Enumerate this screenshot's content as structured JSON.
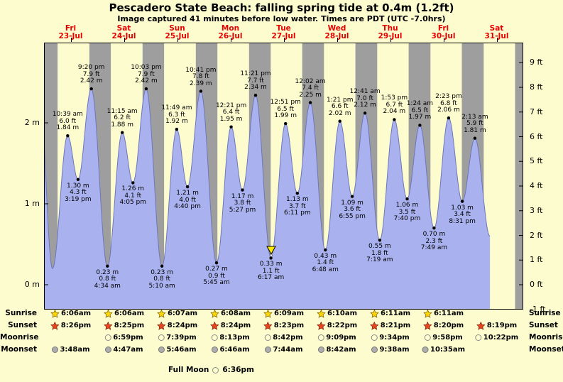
{
  "title": "Pescadero State Beach: falling  spring tide at 0.4m (1.2ft)",
  "subtitle": "Image captured 41 minutes before low water. Times are PDT (UTC -7.0hrs)",
  "chart_data": {
    "type": "area",
    "title": "Pescadero State Beach tide curve",
    "days": [
      {
        "name": "Fri",
        "date": "23-Jul"
      },
      {
        "name": "Sat",
        "date": "24-Jul"
      },
      {
        "name": "Sun",
        "date": "25-Jul"
      },
      {
        "name": "Mon",
        "date": "26-Jul"
      },
      {
        "name": "Tue",
        "date": "27-Jul"
      },
      {
        "name": "Wed",
        "date": "28-Jul"
      },
      {
        "name": "Thu",
        "date": "29-Jul"
      },
      {
        "name": "Fri",
        "date": "30-Jul"
      },
      {
        "name": "Sat",
        "date": "31-Jul"
      }
    ],
    "y_left": {
      "unit": "m",
      "ticks": [
        2,
        1,
        0
      ]
    },
    "y_right": {
      "unit": "ft",
      "ticks": [
        9,
        8,
        7,
        6,
        5,
        4,
        3,
        2,
        1,
        0,
        -1
      ]
    },
    "ylim_m": [
      -0.3,
      3.0
    ],
    "tides": [
      {
        "day": 0,
        "type": "high",
        "time": "10:39 am",
        "ft": 6.0,
        "m": 1.84
      },
      {
        "day": 0,
        "type": "low",
        "time": "3:19 pm",
        "ft": 4.3,
        "m": 1.3
      },
      {
        "day": 0,
        "type": "high",
        "time": "9:20 pm",
        "ft": 7.9,
        "m": 2.42
      },
      {
        "day": 1,
        "type": "low",
        "time": "4:34 am",
        "ft": 0.8,
        "m": 0.23
      },
      {
        "day": 1,
        "type": "high",
        "time": "11:15 am",
        "ft": 6.2,
        "m": 1.88
      },
      {
        "day": 1,
        "type": "low",
        "time": "4:05 pm",
        "ft": 4.1,
        "m": 1.26
      },
      {
        "day": 1,
        "type": "high",
        "time": "10:03 pm",
        "ft": 7.9,
        "m": 2.42
      },
      {
        "day": 2,
        "type": "low",
        "time": "5:10 am",
        "ft": 0.8,
        "m": 0.23
      },
      {
        "day": 2,
        "type": "high",
        "time": "11:49 am",
        "ft": 6.3,
        "m": 1.92
      },
      {
        "day": 2,
        "type": "low",
        "time": "4:40 pm",
        "ft": 4.0,
        "m": 1.21
      },
      {
        "day": 2,
        "type": "high",
        "time": "10:41 pm",
        "ft": 7.8,
        "m": 2.39
      },
      {
        "day": 3,
        "type": "low",
        "time": "5:45 am",
        "ft": 0.9,
        "m": 0.27
      },
      {
        "day": 3,
        "type": "high",
        "time": "12:21 pm",
        "ft": 6.4,
        "m": 1.95
      },
      {
        "day": 3,
        "type": "low",
        "time": "5:27 pm",
        "ft": 3.8,
        "m": 1.17
      },
      {
        "day": 3,
        "type": "high",
        "time": "11:21 pm",
        "ft": 7.7,
        "m": 2.34
      },
      {
        "day": 4,
        "type": "low",
        "time": "6:17 am",
        "ft": 1.1,
        "m": 0.33,
        "current": true
      },
      {
        "day": 4,
        "type": "high",
        "time": "12:51 pm",
        "ft": 6.5,
        "m": 1.99
      },
      {
        "day": 4,
        "type": "low",
        "time": "6:11 pm",
        "ft": 3.7,
        "m": 1.13
      },
      {
        "day": 5,
        "type": "high",
        "time": "12:02 am",
        "ft": 7.4,
        "m": 2.25
      },
      {
        "day": 5,
        "type": "low",
        "time": "6:48 am",
        "ft": 1.4,
        "m": 0.43
      },
      {
        "day": 5,
        "type": "high",
        "time": "1:21 pm",
        "ft": 6.6,
        "m": 2.02
      },
      {
        "day": 5,
        "type": "low",
        "time": "6:55 pm",
        "ft": 3.6,
        "m": 1.09
      },
      {
        "day": 6,
        "type": "high",
        "time": "12:41 am",
        "ft": 7.0,
        "m": 2.12
      },
      {
        "day": 6,
        "type": "low",
        "time": "7:19 am",
        "ft": 1.8,
        "m": 0.55
      },
      {
        "day": 6,
        "type": "high",
        "time": "1:53 pm",
        "ft": 6.7,
        "m": 2.04
      },
      {
        "day": 6,
        "type": "low",
        "time": "7:40 pm",
        "ft": 3.5,
        "m": 1.06
      },
      {
        "day": 7,
        "type": "high",
        "time": "1:24 am",
        "ft": 6.5,
        "m": 1.97
      },
      {
        "day": 7,
        "type": "low",
        "time": "7:49 am",
        "ft": 2.3,
        "m": 0.7
      },
      {
        "day": 7,
        "type": "high",
        "time": "2:23 pm",
        "ft": 6.8,
        "m": 2.06
      },
      {
        "day": 7,
        "type": "low",
        "time": "8:31 pm",
        "ft": 3.4,
        "m": 1.03
      },
      {
        "day": 8,
        "type": "high",
        "time": "2:13 am",
        "ft": 5.9,
        "m": 1.81
      }
    ]
  },
  "astro": {
    "sunrise": {
      "label": "Sunrise",
      "start_day": 0,
      "times": [
        "6:06am",
        "6:06am",
        "6:07am",
        "6:08am",
        "6:09am",
        "6:10am",
        "6:11am",
        "6:11am"
      ]
    },
    "sunset": {
      "label": "Sunset",
      "start_day": 0,
      "times": [
        "8:26pm",
        "8:25pm",
        "8:24pm",
        "8:24pm",
        "8:23pm",
        "8:22pm",
        "8:21pm",
        "8:20pm",
        "8:19pm"
      ]
    },
    "moonrise": {
      "label": "Moonrise",
      "start_day": 1,
      "times": [
        "6:59pm",
        "7:39pm",
        "8:13pm",
        "8:42pm",
        "9:09pm",
        "9:34pm",
        "9:58pm",
        "10:22pm"
      ]
    },
    "moonset": {
      "label": "Moonset",
      "start_day": 0,
      "times": [
        "3:48am",
        "4:47am",
        "5:46am",
        "6:46am",
        "7:44am",
        "8:42am",
        "9:38am",
        "10:35am"
      ]
    }
  },
  "full_moon": {
    "label": "Full Moon",
    "time": "6:36pm"
  },
  "colors": {
    "day_bg": "#fcfccf",
    "night_bg": "#9e9e9e",
    "tide_fill": "#a9b2ef",
    "tide_stroke": "#6d76bb",
    "date_red": "#e60000",
    "marker": "#ffe800",
    "sunrise_star": "#ffd700",
    "sunset_star": "#e8471f",
    "moonrise_circle": "#ffffd0",
    "moonset_circle": "#aeaeae"
  }
}
